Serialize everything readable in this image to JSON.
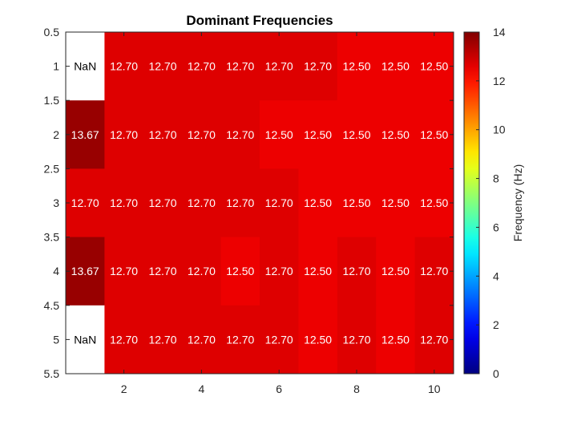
{
  "chart_data": {
    "type": "heatmap",
    "title": "Dominant Frequencies",
    "x_ticks": [
      "2",
      "4",
      "6",
      "8",
      "10"
    ],
    "x_tick_values": [
      2,
      4,
      6,
      8,
      10
    ],
    "y_ticks": [
      "0.5",
      "1",
      "1.5",
      "2",
      "2.5",
      "3",
      "3.5",
      "4",
      "4.5",
      "5",
      "5.5"
    ],
    "y_tick_values": [
      0.5,
      1,
      1.5,
      2,
      2.5,
      3,
      3.5,
      4,
      4.5,
      5,
      5.5
    ],
    "xlim": [
      0.5,
      10.5
    ],
    "ylim": [
      0.5,
      5.5
    ],
    "columns": [
      1,
      2,
      3,
      4,
      5,
      6,
      7,
      8,
      9,
      10
    ],
    "rows": [
      1,
      2,
      3,
      4,
      5
    ],
    "values": [
      [
        null,
        12.7,
        12.7,
        12.7,
        12.7,
        12.7,
        12.7,
        12.5,
        12.5,
        12.5
      ],
      [
        13.67,
        12.7,
        12.7,
        12.7,
        12.7,
        12.5,
        12.5,
        12.5,
        12.5,
        12.5
      ],
      [
        12.7,
        12.7,
        12.7,
        12.7,
        12.7,
        12.7,
        12.5,
        12.5,
        12.5,
        12.5
      ],
      [
        13.67,
        12.7,
        12.7,
        12.7,
        12.5,
        12.7,
        12.5,
        12.7,
        12.5,
        12.7
      ],
      [
        null,
        12.7,
        12.7,
        12.7,
        12.7,
        12.7,
        12.5,
        12.7,
        12.5,
        12.7
      ]
    ],
    "labels": [
      [
        "NaN",
        "12.70",
        "12.70",
        "12.70",
        "12.70",
        "12.70",
        "12.70",
        "12.50",
        "12.50",
        "12.50"
      ],
      [
        "13.67",
        "12.70",
        "12.70",
        "12.70",
        "12.70",
        "12.50",
        "12.50",
        "12.50",
        "12.50",
        "12.50"
      ],
      [
        "12.70",
        "12.70",
        "12.70",
        "12.70",
        "12.70",
        "12.70",
        "12.50",
        "12.50",
        "12.50",
        "12.50"
      ],
      [
        "13.67",
        "12.70",
        "12.70",
        "12.70",
        "12.50",
        "12.70",
        "12.50",
        "12.70",
        "12.50",
        "12.70"
      ],
      [
        "NaN",
        "12.70",
        "12.70",
        "12.70",
        "12.70",
        "12.70",
        "12.50",
        "12.70",
        "12.50",
        "12.70"
      ]
    ],
    "nan_color": "#ffffff",
    "colormap": "jet",
    "colorbar": {
      "label": "Frequency (Hz)",
      "range": [
        0,
        14
      ],
      "ticks": [
        "0",
        "2",
        "4",
        "6",
        "8",
        "10",
        "12",
        "14"
      ],
      "tick_values": [
        0,
        2,
        4,
        6,
        8,
        10,
        12,
        14
      ],
      "placement": "right"
    },
    "grid": false
  }
}
